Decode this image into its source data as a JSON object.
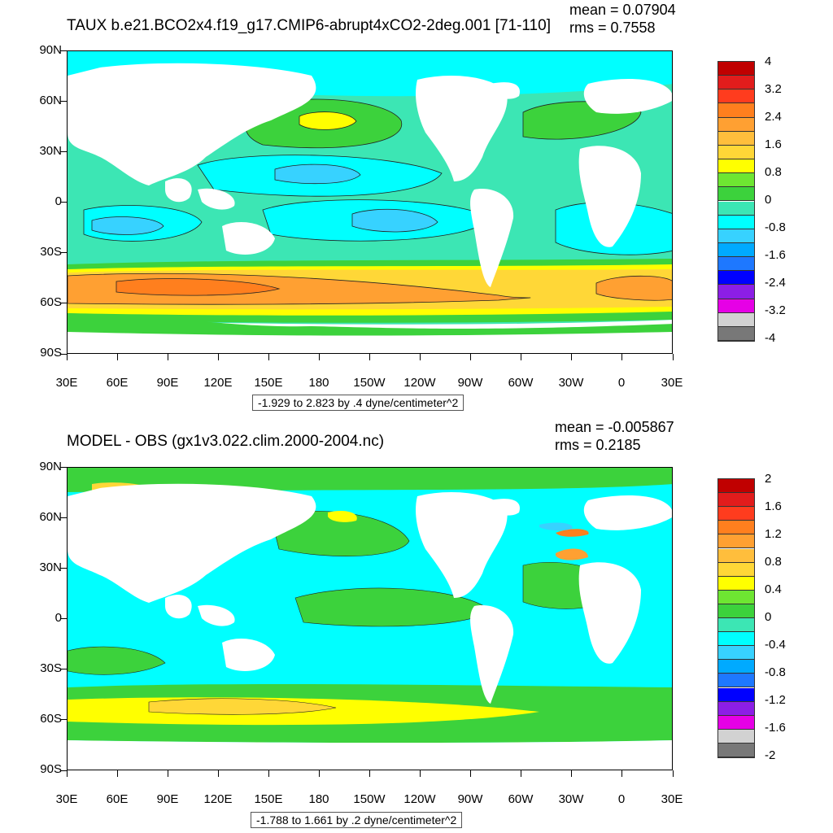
{
  "panels": [
    {
      "title": "TAUX b.e21.BCO2x4.f19_g17.CMIP6-abrupt4xCO2-2deg.001 [71-110]",
      "mean": "mean = 0.07904",
      "rms": "rms = 0.7558",
      "range_text": "-1.929 to 2.823 by .4 dyne/centimeter^2",
      "y_labels": [
        "90N",
        "60N",
        "30N",
        "0",
        "30S",
        "60S",
        "90S"
      ],
      "x_labels": [
        "30E",
        "60E",
        "90E",
        "120E",
        "150E",
        "180",
        "150W",
        "120W",
        "90W",
        "60W",
        "30W",
        "0",
        "30E"
      ],
      "colorbar_labels": [
        "4",
        "3.2",
        "2.4",
        "1.6",
        "0.8",
        "0",
        "-0.8",
        "-1.6",
        "-2.4",
        "-3.2",
        "-4"
      ],
      "colorbar_colors": [
        "#c00000",
        "#e21c1c",
        "#ff3c1e",
        "#ff7f1e",
        "#ffa032",
        "#ffbe3c",
        "#ffd737",
        "#ffff00",
        "#6ee632",
        "#3cd23c",
        "#3ce6b4",
        "#00ffff",
        "#37d2ff",
        "#00aaff",
        "#1e78ff",
        "#0000ff",
        "#8c1ee6",
        "#e600e6",
        "#d2d2d2",
        "#787878"
      ]
    },
    {
      "title": "MODEL - OBS (gx1v3.022.clim.2000-2004.nc)",
      "mean": "mean = -0.005867",
      "rms": "rms = 0.2185",
      "range_text": "-1.788 to 1.661 by .2 dyne/centimeter^2",
      "y_labels": [
        "90N",
        "60N",
        "30N",
        "0",
        "30S",
        "60S",
        "90S"
      ],
      "x_labels": [
        "30E",
        "60E",
        "90E",
        "120E",
        "150E",
        "180",
        "150W",
        "120W",
        "90W",
        "60W",
        "30W",
        "0",
        "30E"
      ],
      "colorbar_labels": [
        "2",
        "1.6",
        "1.2",
        "0.8",
        "0.4",
        "0",
        "-0.4",
        "-0.8",
        "-1.2",
        "-1.6",
        "-2"
      ],
      "colorbar_colors": [
        "#c00000",
        "#e21c1c",
        "#ff3c1e",
        "#ff7f1e",
        "#ffa032",
        "#ffbe3c",
        "#ffd737",
        "#ffff00",
        "#6ee632",
        "#3cd23c",
        "#3ce6b4",
        "#00ffff",
        "#37d2ff",
        "#00aaff",
        "#1e78ff",
        "#0000ff",
        "#8c1ee6",
        "#e600e6",
        "#d2d2d2",
        "#787878"
      ]
    }
  ],
  "colors": {
    "land": "#ffffff",
    "ocean_base": "#3ce6b4",
    "contour": "#222222"
  }
}
